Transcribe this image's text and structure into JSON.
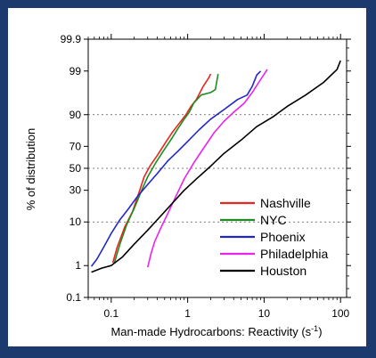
{
  "chart_data": {
    "type": "line",
    "title": "",
    "xlabel": "Man-made Hydrocarbons:  Reactivity (s",
    "xlabel_sup": "-1",
    "xlabel_close": ")",
    "ylabel": "% of distribution",
    "x_scale": "log",
    "y_scale": "probability",
    "xlim": [
      0.05,
      120
    ],
    "ylim": [
      0.1,
      99.9
    ],
    "x_ticks": [
      0.1,
      1,
      10,
      100
    ],
    "x_tick_labels": [
      "0.1",
      "1",
      "10",
      "100"
    ],
    "y_ticks": [
      0.1,
      1,
      10,
      30,
      50,
      70,
      90,
      99,
      99.9
    ],
    "y_tick_labels": [
      "0.1",
      "1",
      "10",
      "30",
      "50",
      "70",
      "90",
      "99",
      "99.9"
    ],
    "grid": "dashed horizontal lines at 10, 50 and 90",
    "legend_position": "bottom-right",
    "series": [
      {
        "name": "Nashville",
        "color": "#e8251f",
        "points": [
          [
            0.105,
            1.2
          ],
          [
            0.12,
            3
          ],
          [
            0.15,
            8
          ],
          [
            0.19,
            15
          ],
          [
            0.23,
            28
          ],
          [
            0.27,
            42
          ],
          [
            0.32,
            52
          ],
          [
            0.4,
            62
          ],
          [
            0.5,
            72
          ],
          [
            0.62,
            80
          ],
          [
            0.78,
            86
          ],
          [
            0.95,
            90
          ],
          [
            1.1,
            93
          ],
          [
            1.3,
            95
          ],
          [
            1.6,
            97.5
          ],
          [
            1.9,
            98.5
          ],
          [
            2.0,
            98.8
          ]
        ]
      },
      {
        "name": "NYC",
        "color": "#1f8c22",
        "points": [
          [
            0.11,
            1.2
          ],
          [
            0.13,
            3.5
          ],
          [
            0.16,
            9
          ],
          [
            0.2,
            17
          ],
          [
            0.25,
            30
          ],
          [
            0.3,
            42
          ],
          [
            0.38,
            55
          ],
          [
            0.48,
            66
          ],
          [
            0.6,
            75
          ],
          [
            0.75,
            83
          ],
          [
            0.9,
            88
          ],
          [
            1.05,
            91
          ],
          [
            1.2,
            94
          ],
          [
            1.5,
            96
          ],
          [
            2.0,
            96.5
          ],
          [
            2.3,
            97
          ],
          [
            2.5,
            98.8
          ]
        ]
      },
      {
        "name": "Phoenix",
        "color": "#2326c8",
        "points": [
          [
            0.055,
            0.95
          ],
          [
            0.065,
            1.5
          ],
          [
            0.08,
            3
          ],
          [
            0.1,
            6
          ],
          [
            0.13,
            11
          ],
          [
            0.17,
            17
          ],
          [
            0.22,
            25
          ],
          [
            0.3,
            35
          ],
          [
            0.4,
            45
          ],
          [
            0.55,
            57
          ],
          [
            0.75,
            66
          ],
          [
            1.0,
            74
          ],
          [
            1.4,
            82
          ],
          [
            2.0,
            88
          ],
          [
            3.0,
            92
          ],
          [
            4.5,
            95
          ],
          [
            6.0,
            96
          ],
          [
            7.0,
            97.5
          ],
          [
            8.0,
            98.7
          ],
          [
            9.0,
            99.0
          ]
        ]
      },
      {
        "name": "Philadelphia",
        "color": "#e923e8",
        "points": [
          [
            0.3,
            0.9
          ],
          [
            0.33,
            2
          ],
          [
            0.37,
            4
          ],
          [
            0.45,
            8
          ],
          [
            0.55,
            14
          ],
          [
            0.7,
            25
          ],
          [
            0.9,
            40
          ],
          [
            1.2,
            55
          ],
          [
            1.6,
            68
          ],
          [
            2.2,
            80
          ],
          [
            3.0,
            87
          ],
          [
            4.0,
            91
          ],
          [
            5.5,
            94
          ],
          [
            7.0,
            96.5
          ],
          [
            8.5,
            98
          ],
          [
            11,
            99.1
          ]
        ]
      },
      {
        "name": "Houston",
        "color": "#000000",
        "points": [
          [
            0.055,
            0.65
          ],
          [
            0.075,
            0.85
          ],
          [
            0.1,
            1.0
          ],
          [
            0.14,
            1.7
          ],
          [
            0.2,
            3.5
          ],
          [
            0.3,
            7
          ],
          [
            0.45,
            13
          ],
          [
            0.65,
            21
          ],
          [
            0.9,
            30
          ],
          [
            1.3,
            40
          ],
          [
            2.0,
            52
          ],
          [
            3.0,
            64
          ],
          [
            5.0,
            75
          ],
          [
            8.0,
            84
          ],
          [
            13,
            89
          ],
          [
            20,
            93
          ],
          [
            35,
            96
          ],
          [
            60,
            98
          ],
          [
            90,
            99.1
          ],
          [
            100,
            99.5
          ]
        ]
      }
    ]
  }
}
